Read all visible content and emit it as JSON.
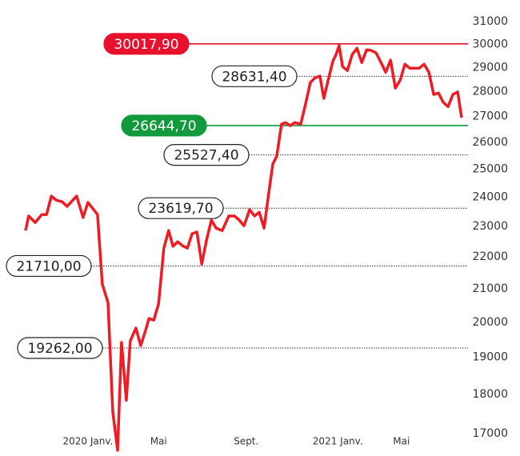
{
  "chart_data": {
    "type": "line",
    "log_scale": true,
    "series": [
      {
        "color": "#ee1c25",
        "x": [
          0,
          0.7,
          2.2,
          3.7,
          4.8,
          5.9,
          7.0,
          8.4,
          9.5,
          11.7,
          13.2,
          14.3,
          16.5,
          17.6,
          18.9,
          20.0,
          21.1,
          22.0,
          23.1,
          24.0,
          25.3,
          26.4,
          27.5,
          28.3,
          29.4,
          30.5,
          31.7,
          32.8,
          33.8,
          34.9,
          36.0,
          37.1,
          38.2,
          39.3,
          40.4,
          41.5,
          42.6,
          43.7,
          45.1,
          46.6,
          47.9,
          49.0,
          50.1,
          51.4,
          52.5,
          53.6,
          54.7,
          55.8,
          56.7,
          57.6,
          58.7,
          59.6,
          60.7,
          61.7,
          63.1,
          64.2,
          65.3,
          66.4,
          67.5,
          68.4,
          69.4,
          70.5,
          71.2,
          71.9,
          72.7,
          73.8,
          74.9,
          76.0,
          77.1,
          78.2,
          79.3,
          80.4,
          81.5,
          82.6,
          83.7,
          84.8,
          85.9,
          87.0,
          88.1,
          89.2,
          90.3,
          91.4,
          92.5,
          93.6,
          94.7,
          95.8,
          96.9,
          98.0,
          99.1,
          100.0
        ],
        "values": [
          22860,
          23350,
          23130,
          23400,
          23400,
          24040,
          23900,
          23840,
          23680,
          24040,
          23300,
          23820,
          23400,
          21140,
          20580,
          17540,
          16590,
          19420,
          17850,
          19460,
          19830,
          19330,
          19760,
          20110,
          20060,
          20540,
          22280,
          22860,
          22340,
          22490,
          22360,
          22280,
          22760,
          22810,
          21770,
          22550,
          23210,
          22940,
          22860,
          23350,
          23350,
          23210,
          23020,
          23570,
          23350,
          23480,
          22940,
          24180,
          25190,
          25480,
          26700,
          26760,
          26640,
          26760,
          26700,
          27490,
          28370,
          28570,
          28640,
          27720,
          28470,
          29280,
          29550,
          29940,
          29040,
          28870,
          29550,
          29830,
          29210,
          29760,
          29730,
          29620,
          29210,
          28800,
          29310,
          28140,
          28470,
          29140,
          28970,
          28970,
          28970,
          29140,
          28800,
          27880,
          27940,
          27560,
          27390,
          27880,
          27980,
          26950
        ]
      }
    ],
    "xlim": [
      0,
      100
    ],
    "xticks": [
      {
        "value": 14.3,
        "label": "2020 Janv."
      },
      {
        "value": 30.5,
        "label": "Mai"
      },
      {
        "value": 50.6,
        "label": "Sept."
      },
      {
        "value": 71.6,
        "label": "2021 Janv."
      },
      {
        "value": 86.2,
        "label": "Mai"
      }
    ],
    "ylim": [
      16500,
      32000
    ],
    "yticks": [
      17000,
      18000,
      19000,
      20000,
      21000,
      22000,
      23000,
      24000,
      25000,
      26000,
      27000,
      28000,
      29000,
      30000,
      31000
    ],
    "reference_lines": [
      {
        "value": 30017.9,
        "label": "30017,90",
        "color": "#e8112d",
        "style": "solid"
      },
      {
        "value": 28631.4,
        "label": "28631,40",
        "color": "#333333",
        "style": "dotted"
      },
      {
        "value": 26644.7,
        "label": "26644,70",
        "color": "#119a3c",
        "style": "solid"
      },
      {
        "value": 25527.4,
        "label": "25527,40",
        "color": "#333333",
        "style": "dotted"
      },
      {
        "value": 23619.7,
        "label": "23619,70",
        "color": "#333333",
        "style": "dotted"
      },
      {
        "value": 21710.0,
        "label": "21710,00",
        "color": "#333333",
        "style": "dotted"
      },
      {
        "value": 19262.0,
        "label": "19262,00",
        "color": "#333333",
        "style": "dotted"
      }
    ]
  }
}
